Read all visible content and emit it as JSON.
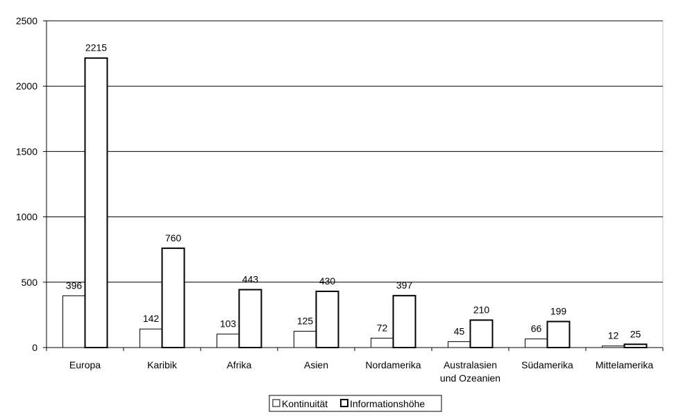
{
  "chart_data": {
    "type": "bar",
    "categories": [
      [
        "Europa"
      ],
      [
        "Karibik"
      ],
      [
        "Afrika"
      ],
      [
        "Asien"
      ],
      [
        "Nordamerika"
      ],
      [
        "Australasien",
        "und Ozeanien"
      ],
      [
        "Südamerika"
      ],
      [
        "Mittelamerika"
      ]
    ],
    "series": [
      {
        "name": "Kontinuität",
        "values": [
          396,
          142,
          103,
          125,
          72,
          45,
          66,
          12
        ],
        "stroke": "#000000",
        "stroke_emphasis": "thin"
      },
      {
        "name": "Informationshöhe",
        "values": [
          2215,
          760,
          443,
          430,
          397,
          210,
          199,
          25
        ],
        "stroke": "#000000",
        "stroke_emphasis": "bold"
      }
    ],
    "yticks": [
      "0",
      "500",
      "1000",
      "1500",
      "2000",
      "2500"
    ],
    "ylim": [
      0,
      2500
    ],
    "grid": true,
    "legend_position": "bottom-center",
    "colors": {
      "bar_fill": "#ffffff",
      "axis": "#000000",
      "grid": "#000000",
      "background": "#ffffff"
    }
  }
}
